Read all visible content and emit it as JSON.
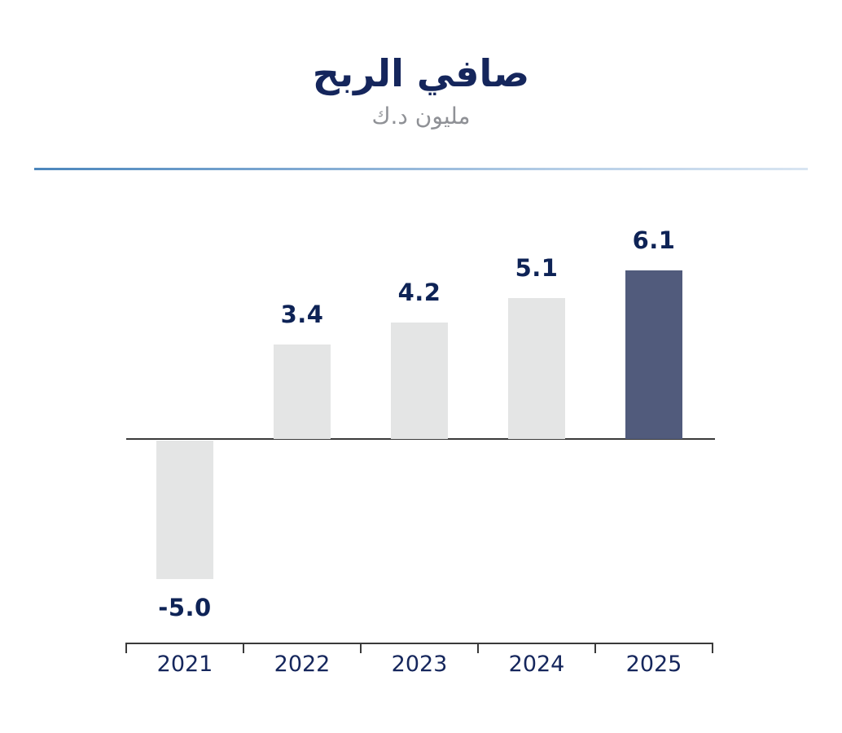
{
  "header": {
    "title": "صافي الربح",
    "subtitle": "مليون د.ك"
  },
  "chart_data": {
    "type": "bar",
    "title": "صافي الربح",
    "subtitle_unit": "مليون د.ك",
    "categories": [
      "2021",
      "2022",
      "2023",
      "2024",
      "2025"
    ],
    "values": [
      -5.0,
      3.4,
      4.2,
      5.1,
      6.1
    ],
    "value_labels": [
      "-5.0",
      "3.4",
      "4.2",
      "5.1",
      "6.1"
    ],
    "highlighted_category": "2025",
    "baseline": 0,
    "ylim": [
      -5.5,
      7
    ],
    "grid": false,
    "legend": false,
    "colors": {
      "bar_default": "#E4E5E5",
      "bar_highlight": "#515B7C",
      "value_label": "#0E2356",
      "year_label": "#15265C",
      "title": "#15265C",
      "subtitle": "#8F9196",
      "divider_start": "#4B86BC",
      "divider_end": "#D9E5F2",
      "axis_line": "#3A3A3A"
    }
  }
}
